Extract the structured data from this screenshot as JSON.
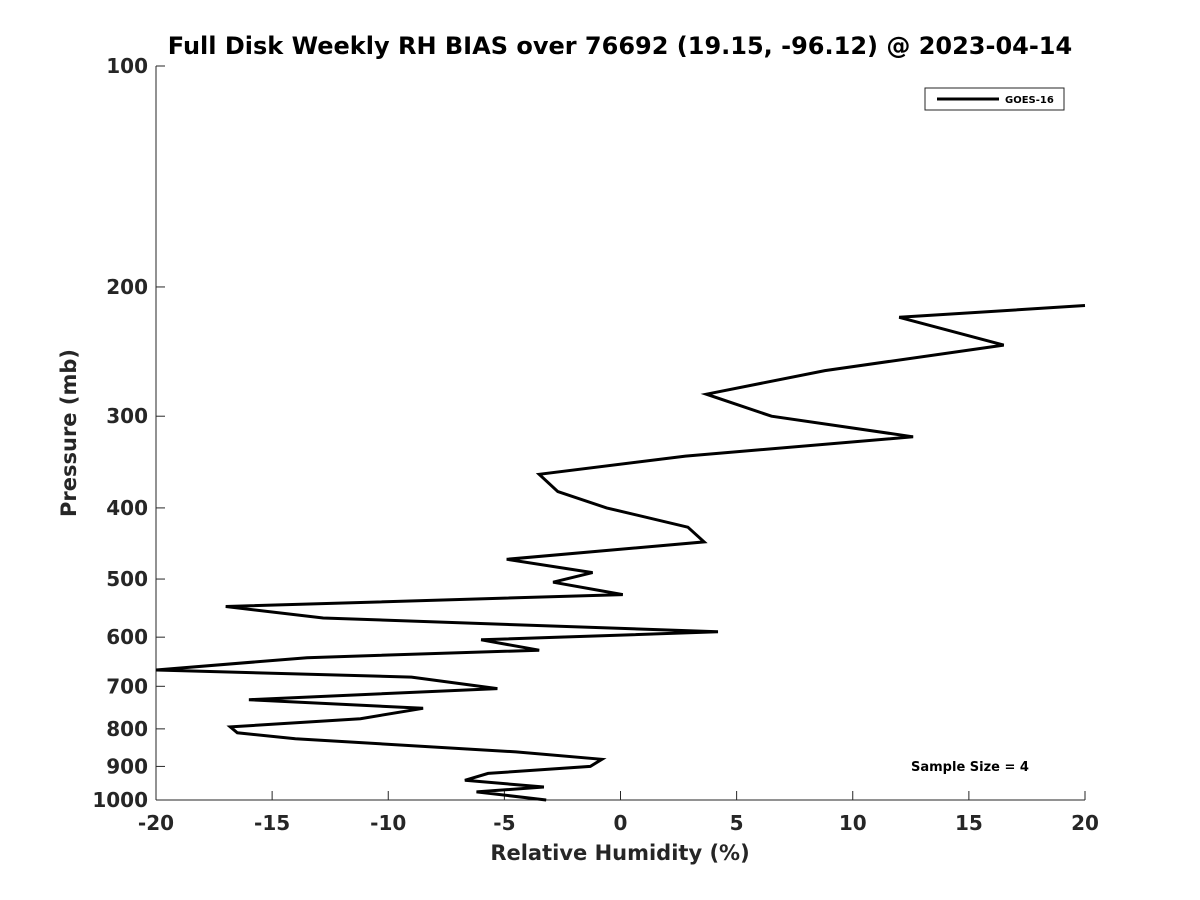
{
  "chart_data": {
    "type": "line",
    "title": "Full Disk Weekly RH BIAS over 76692 (19.15, -96.12) @ 2023-04-14",
    "xlabel": "Relative Humidity (%)",
    "ylabel": "Pressure (mb)",
    "xlim": [
      -20,
      20
    ],
    "ylim": [
      100,
      1000
    ],
    "y_scale": "log",
    "y_reversed": true,
    "grid": false,
    "legend_position": "top-right",
    "x_ticks": [
      {
        "value": -20,
        "label": "-20"
      },
      {
        "value": -15,
        "label": "-15"
      },
      {
        "value": -10,
        "label": "-10"
      },
      {
        "value": -5,
        "label": "-5"
      },
      {
        "value": 0,
        "label": "0"
      },
      {
        "value": 5,
        "label": "5"
      },
      {
        "value": 10,
        "label": "10"
      },
      {
        "value": 15,
        "label": "15"
      },
      {
        "value": 20,
        "label": "20"
      }
    ],
    "y_ticks": [
      {
        "value": 100,
        "label": "100"
      },
      {
        "value": 200,
        "label": "200"
      },
      {
        "value": 300,
        "label": "300"
      },
      {
        "value": 400,
        "label": "400"
      },
      {
        "value": 500,
        "label": "500"
      },
      {
        "value": 600,
        "label": "600"
      },
      {
        "value": 700,
        "label": "700"
      },
      {
        "value": 800,
        "label": "800"
      },
      {
        "value": 900,
        "label": "900"
      },
      {
        "value": 1000,
        "label": "1000"
      }
    ],
    "series": [
      {
        "name": "GOES-16",
        "color": "#000000",
        "points": [
          {
            "x": 20.0,
            "y": 212
          },
          {
            "x": 12.0,
            "y": 220
          },
          {
            "x": 16.5,
            "y": 240
          },
          {
            "x": 8.8,
            "y": 260
          },
          {
            "x": 3.7,
            "y": 280
          },
          {
            "x": 6.5,
            "y": 300
          },
          {
            "x": 12.6,
            "y": 320
          },
          {
            "x": 2.8,
            "y": 340
          },
          {
            "x": -3.5,
            "y": 360
          },
          {
            "x": -2.7,
            "y": 380
          },
          {
            "x": -0.6,
            "y": 400
          },
          {
            "x": 2.9,
            "y": 425
          },
          {
            "x": 3.6,
            "y": 445
          },
          {
            "x": -4.9,
            "y": 470
          },
          {
            "x": -1.2,
            "y": 490
          },
          {
            "x": -2.9,
            "y": 505
          },
          {
            "x": 0.1,
            "y": 525
          },
          {
            "x": -17.0,
            "y": 545
          },
          {
            "x": -12.8,
            "y": 565
          },
          {
            "x": 4.2,
            "y": 590
          },
          {
            "x": -6.0,
            "y": 605
          },
          {
            "x": -3.5,
            "y": 625
          },
          {
            "x": -13.5,
            "y": 640
          },
          {
            "x": -20.0,
            "y": 665
          },
          {
            "x": -9.0,
            "y": 680
          },
          {
            "x": -5.3,
            "y": 705
          },
          {
            "x": -16.0,
            "y": 730
          },
          {
            "x": -8.5,
            "y": 750
          },
          {
            "x": -11.2,
            "y": 775
          },
          {
            "x": -16.8,
            "y": 795
          },
          {
            "x": -16.5,
            "y": 810
          },
          {
            "x": -14.0,
            "y": 825
          },
          {
            "x": -4.5,
            "y": 860
          },
          {
            "x": -0.8,
            "y": 880
          },
          {
            "x": -1.3,
            "y": 900
          },
          {
            "x": -5.7,
            "y": 920
          },
          {
            "x": -6.7,
            "y": 940
          },
          {
            "x": -3.3,
            "y": 960
          },
          {
            "x": -6.2,
            "y": 975
          },
          {
            "x": -3.2,
            "y": 1000
          }
        ]
      }
    ],
    "annotations": [
      {
        "text": "Sample Size = 4"
      }
    ]
  }
}
